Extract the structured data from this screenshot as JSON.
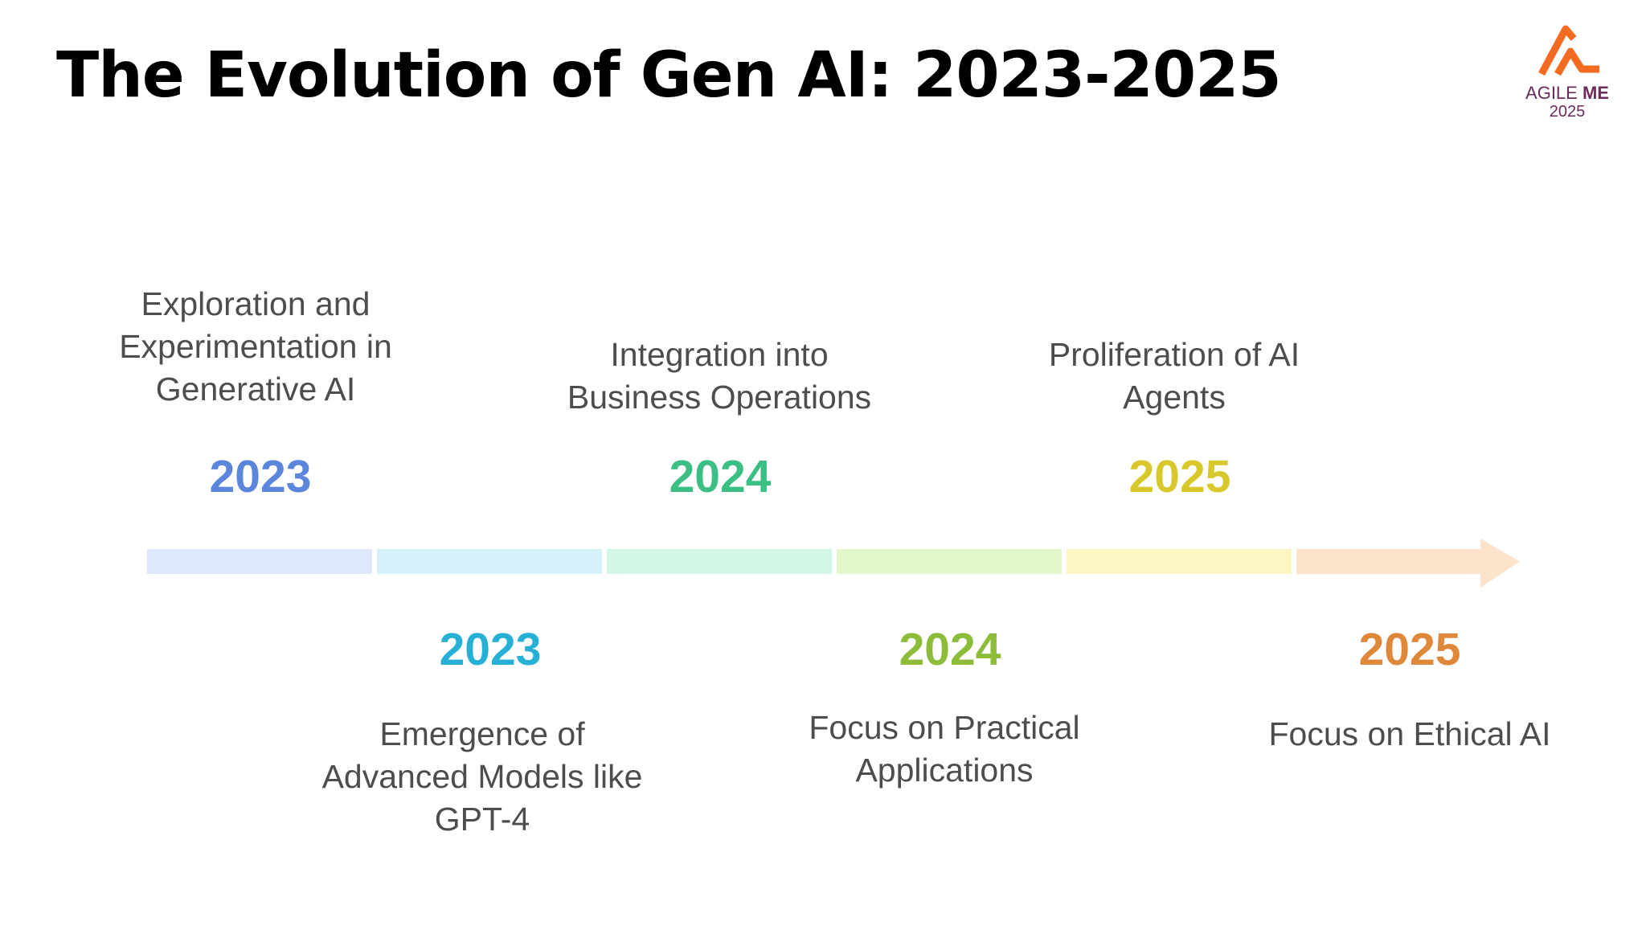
{
  "title": "The Evolution of Gen AI: 2023-2025",
  "logo": {
    "word_light": "AGILE ",
    "word_bold": "ME",
    "year": "2025",
    "mark_color": "#f26b21",
    "text_color": "#6b2c5c"
  },
  "milestones": [
    {
      "year": "2023",
      "caption": "Exploration and Experimentation in Generative AI",
      "year_color": "#5b86dc"
    },
    {
      "year": "2023",
      "caption": "Emergence of Advanced Models like GPT-4",
      "year_color": "#27b0d6"
    },
    {
      "year": "2024",
      "caption": "Integration into Business Operations",
      "year_color": "#3bbf83"
    },
    {
      "year": "2024",
      "caption": "Focus on Practical Applications",
      "year_color": "#8dbb3a"
    },
    {
      "year": "2025",
      "caption": "Proliferation of AI Agents",
      "year_color": "#d9c82b"
    },
    {
      "year": "2025",
      "caption": "Focus on Ethical AI",
      "year_color": "#e0883a"
    }
  ],
  "timeline_segment_colors": [
    "#dfe8fb",
    "#d5f2fb",
    "#d3f7e6",
    "#e4f6cb",
    "#fdf6c2",
    "#fde3cb"
  ]
}
